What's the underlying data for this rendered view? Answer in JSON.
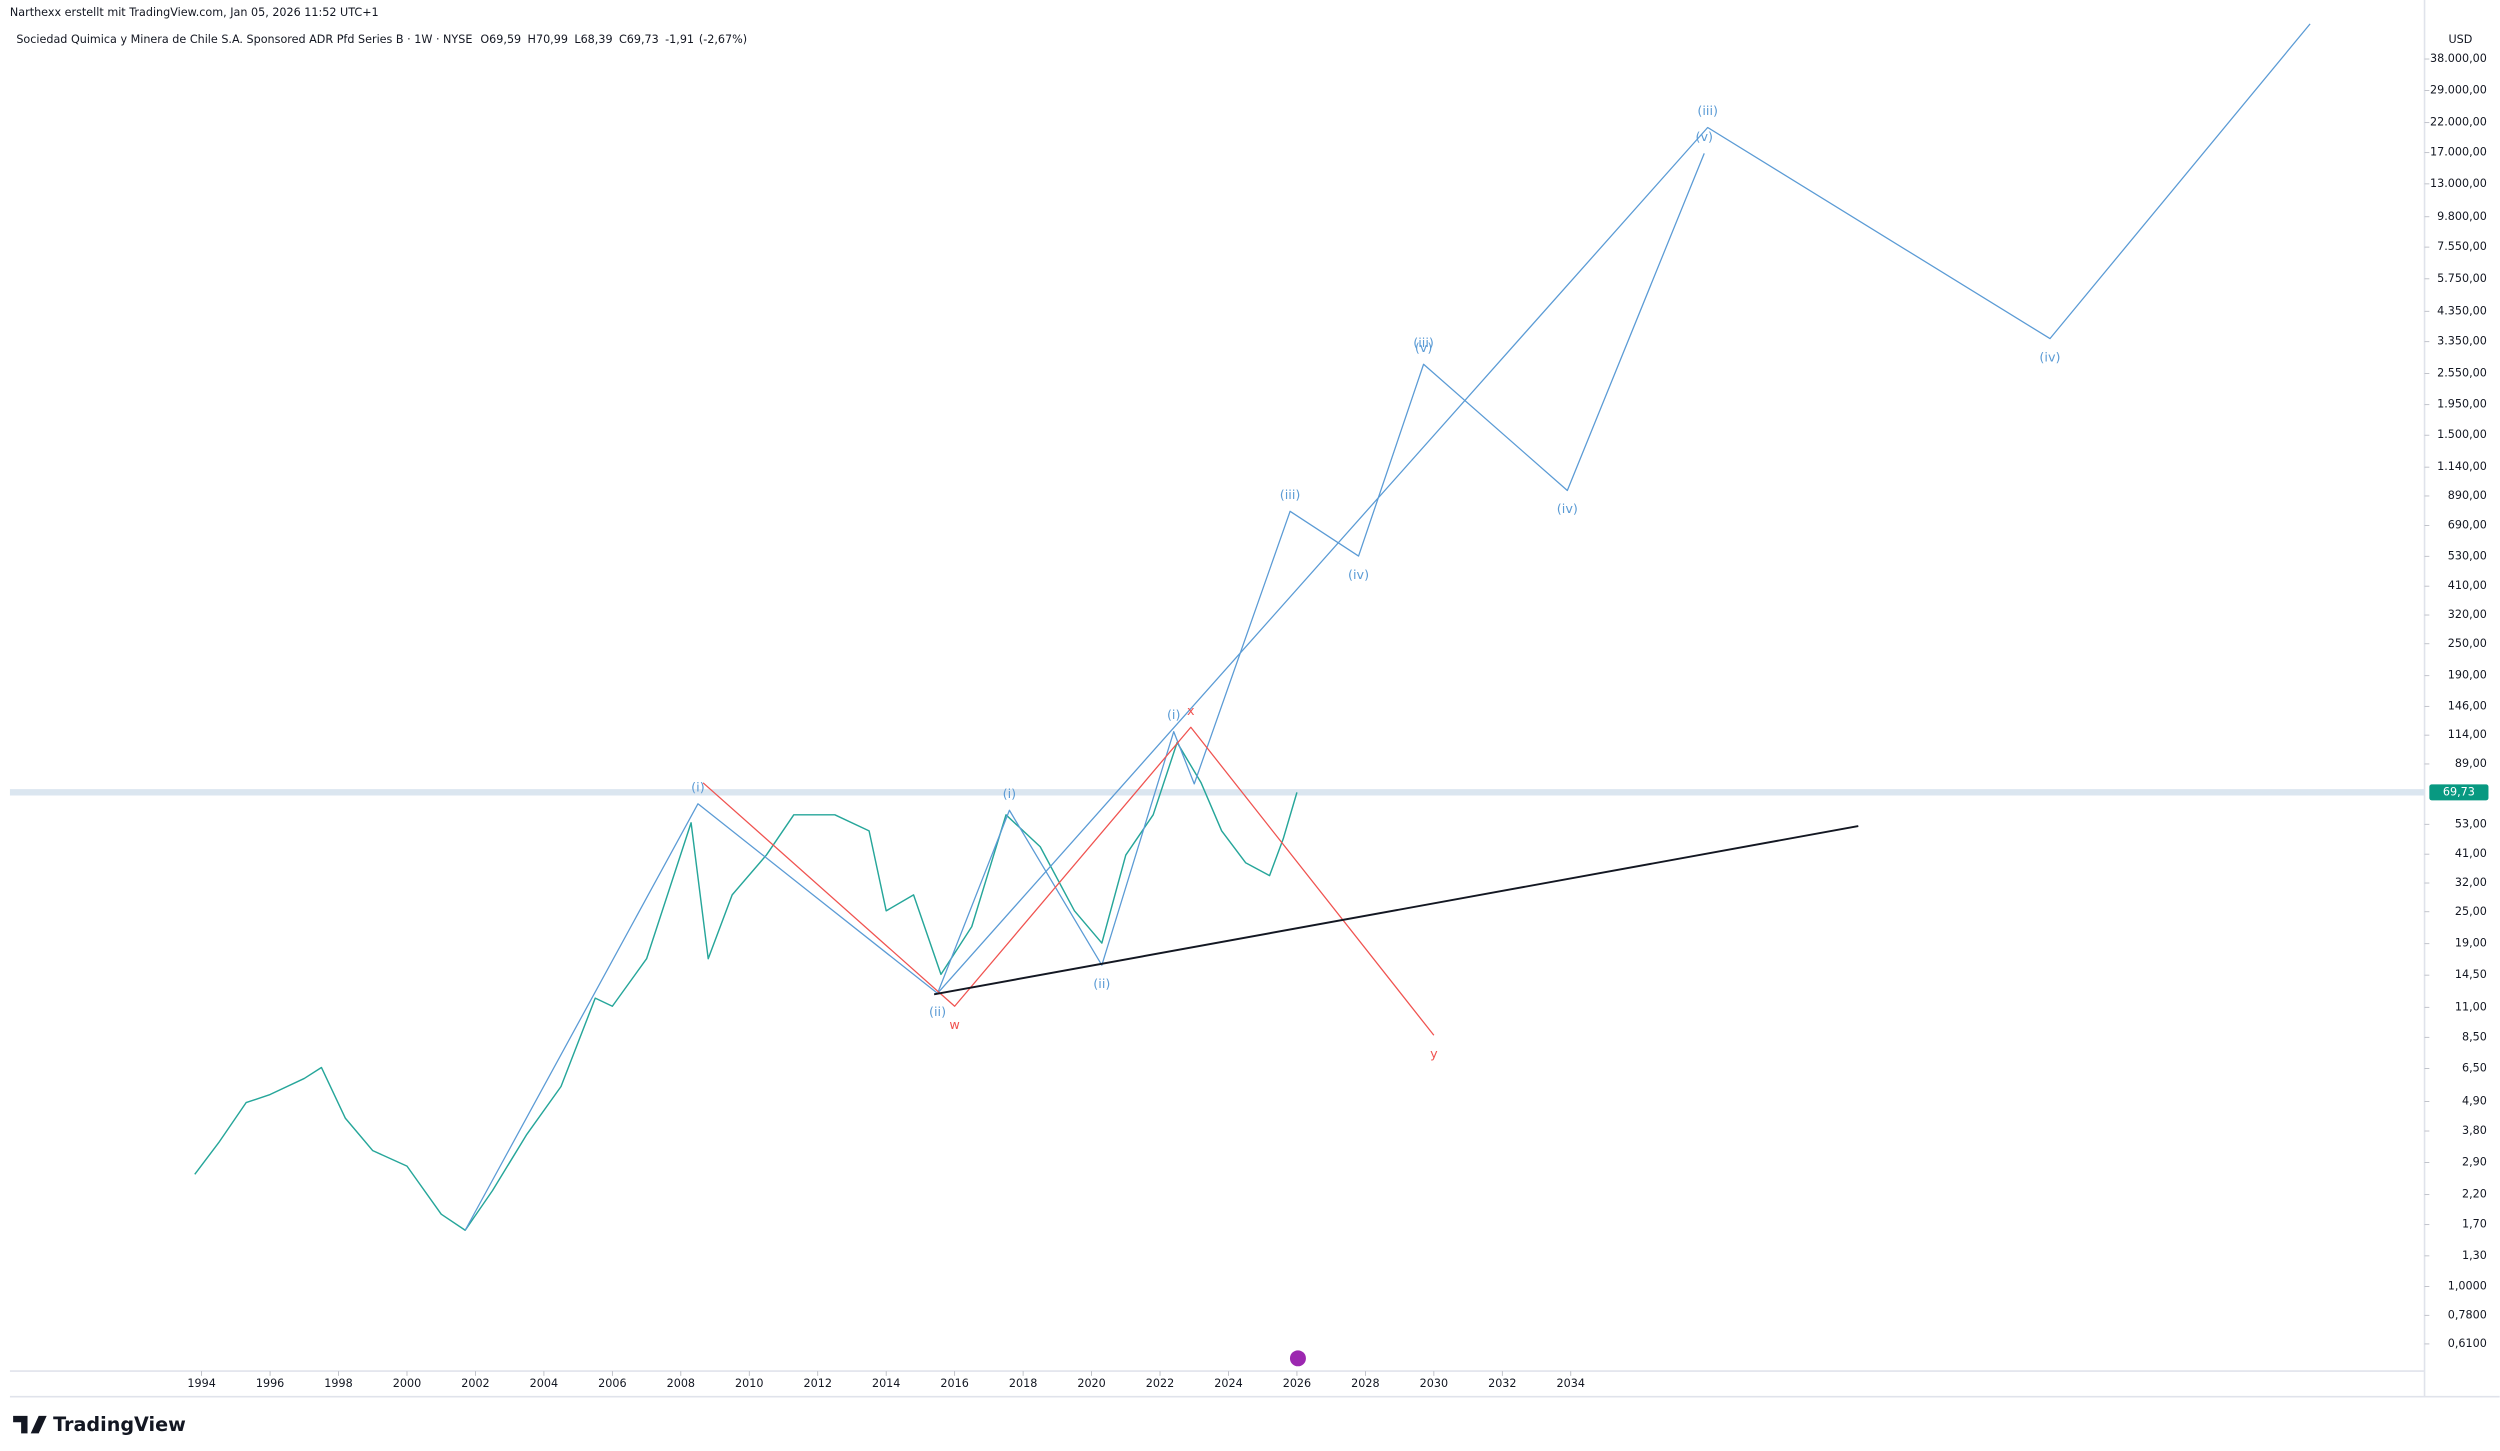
{
  "header": {
    "credit": "Narthexx erstellt mit TradingView.com, Jan 05, 2026 11:52 UTC+1",
    "symbol": "Sociedad Quimica y Minera de Chile S.A. Sponsored ADR Pfd Series B · 1W · NYSE",
    "ohlc": [
      {
        "key": "O",
        "value": 69.59,
        "label": "69,59"
      },
      {
        "key": "H",
        "value": 70.99,
        "label": "70,99"
      },
      {
        "key": "L",
        "value": 68.39,
        "label": "68,39"
      },
      {
        "key": "C",
        "value": 69.73,
        "label": "69,73"
      }
    ],
    "change": {
      "value": -1.91,
      "label": "-1,91"
    },
    "change_pct": {
      "value": -2.67,
      "label": "(-2,67%)"
    }
  },
  "footer": {
    "brand": "TradingView"
  },
  "chart_data": {
    "type": "line",
    "log_scale": true,
    "currency": "USD",
    "xlim": [
      1988.4,
      2058.85
    ],
    "ylim": [
      0.483,
      63100
    ],
    "xticks": [
      1994,
      1996,
      1998,
      2000,
      2002,
      2004,
      2006,
      2008,
      2010,
      2012,
      2014,
      2016,
      2018,
      2020,
      2022,
      2024,
      2026,
      2028,
      2030,
      2032,
      2034
    ],
    "yticks": [
      {
        "value": 38000,
        "label": "38.000,00"
      },
      {
        "value": 29000,
        "label": "29.000,00"
      },
      {
        "value": 22000,
        "label": "22.000,00"
      },
      {
        "value": 17000,
        "label": "17.000,00"
      },
      {
        "value": 13000,
        "label": "13.000,00"
      },
      {
        "value": 9800,
        "label": "9.800,00"
      },
      {
        "value": 7550,
        "label": "7.550,00"
      },
      {
        "value": 5750,
        "label": "5.750,00"
      },
      {
        "value": 4350,
        "label": "4.350,00"
      },
      {
        "value": 3350,
        "label": "3.350,00"
      },
      {
        "value": 2550,
        "label": "2.550,00"
      },
      {
        "value": 1950,
        "label": "1.950,00"
      },
      {
        "value": 1500,
        "label": "1.500,00"
      },
      {
        "value": 1140,
        "label": "1.140,00"
      },
      {
        "value": 890,
        "label": "890,00"
      },
      {
        "value": 690,
        "label": "690,00"
      },
      {
        "value": 530,
        "label": "530,00"
      },
      {
        "value": 410,
        "label": "410,00"
      },
      {
        "value": 320,
        "label": "320,00"
      },
      {
        "value": 250,
        "label": "250,00"
      },
      {
        "value": 190,
        "label": "190,00"
      },
      {
        "value": 146,
        "label": "146,00"
      },
      {
        "value": 114,
        "label": "114,00"
      },
      {
        "value": 89,
        "label": "89,00"
      },
      {
        "value": 53,
        "label": "53,00"
      },
      {
        "value": 41,
        "label": "41,00"
      },
      {
        "value": 32,
        "label": "32,00"
      },
      {
        "value": 25,
        "label": "25,00"
      },
      {
        "value": 19,
        "label": "19,00"
      },
      {
        "value": 14.5,
        "label": "14,50"
      },
      {
        "value": 11,
        "label": "11,00"
      },
      {
        "value": 8.5,
        "label": "8,50"
      },
      {
        "value": 6.5,
        "label": "6,50"
      },
      {
        "value": 4.9,
        "label": "4,90"
      },
      {
        "value": 3.8,
        "label": "3,80"
      },
      {
        "value": 2.9,
        "label": "2,90"
      },
      {
        "value": 2.2,
        "label": "2,20"
      },
      {
        "value": 1.7,
        "label": "1,70"
      },
      {
        "value": 1.3,
        "label": "1,30"
      },
      {
        "value": 1,
        "label": "1,0000"
      },
      {
        "value": 0.78,
        "label": "0,7800"
      },
      {
        "value": 0.61,
        "label": "0,6100"
      }
    ],
    "last_price": {
      "value": 69.73,
      "label": "69,73",
      "color": "#089981"
    },
    "series": [
      {
        "color": "#26a69a",
        "x": [
          1993.8,
          1994.5,
          1995.3,
          1996,
          1997,
          1997.5,
          1998.2,
          1999,
          2000,
          2001,
          2001.7,
          2002.5,
          2003.5,
          2004.5,
          2005.5,
          2006,
          2007,
          2008.3,
          2008.8,
          2009.5,
          2010.5,
          2011.3,
          2012.5,
          2013.5,
          2014,
          2014.8,
          2015.6,
          2016.5,
          2017.5,
          2018.5,
          2019.5,
          2020.3,
          2021,
          2021.8,
          2022.5,
          2023.2,
          2023.8,
          2024.5,
          2025.2,
          2025.6,
          2026
        ],
        "values": [
          2.62,
          3.44,
          4.85,
          5.2,
          5.97,
          6.56,
          4.24,
          3.21,
          2.81,
          1.86,
          1.62,
          2.28,
          3.69,
          5.57,
          11.9,
          11.1,
          16.7,
          53.7,
          16.7,
          28.9,
          40.7,
          57.5,
          57.5,
          50.1,
          25.2,
          28.9,
          14.6,
          22,
          57.5,
          43.7,
          25.2,
          19.1,
          40.7,
          57.5,
          107,
          75.7,
          50.1,
          38.1,
          34.1,
          46.8,
          69.73
        ]
      }
    ],
    "waves": [
      {
        "color": "#5b9bd5",
        "x": [
          2001.7,
          2008.5,
          2015.5,
          2017.6,
          2020.3,
          2022.4,
          2023.0,
          2025.8,
          2027.8,
          2029.7,
          2033.9,
          2037.9
        ],
        "values": [
          1.62,
          63.2,
          12.4,
          59.8,
          15.8,
          117.5,
          75,
          780,
          531,
          2760,
          933,
          16900
        ],
        "labels": [
          null,
          "(i)",
          "(ii)",
          "(i)",
          "(ii)",
          "(i)",
          null,
          "(iii)",
          "(iv)",
          [
            "(iii)",
            "(v)"
          ],
          "(iv)",
          "(v)"
        ]
      },
      {
        "color": "#5b9bd5",
        "x": [
          2015.5,
          2038.0,
          2048.0,
          2055.6
        ],
        "values": [
          12.4,
          21100,
          3440,
          51400
        ],
        "labels": [
          null,
          "(iii)",
          "(iv)",
          null
        ]
      },
      {
        "color": "#f05350",
        "x": [
          2008.65,
          2016.0,
          2022.9,
          2030.0
        ],
        "values": [
          75.7,
          11.1,
          122,
          8.65
        ],
        "labels": [
          null,
          "w",
          "x",
          "y"
        ]
      },
      {
        "color": "#131722",
        "x": [
          2015.4,
          2042.4
        ],
        "values": [
          12.3,
          52.2
        ],
        "labels": [
          null,
          null
        ]
      }
    ]
  }
}
